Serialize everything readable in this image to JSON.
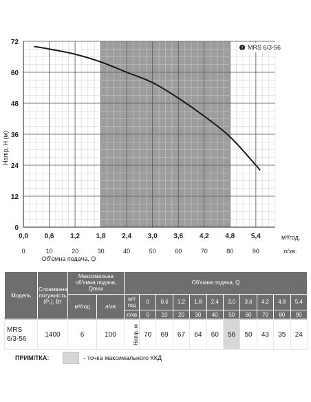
{
  "chart_data": {
    "type": "line",
    "legend": {
      "icon": "info-icon",
      "text": "MRS 6/3-56",
      "position": "top-right"
    },
    "ylabel": "Напір, Н (м)",
    "xlabel": "Об'ємна подача, Q",
    "ylim": [
      0,
      72
    ],
    "y_ticks": [
      0,
      12,
      24,
      36,
      48,
      60,
      72
    ],
    "xlim": [
      0,
      5.85
    ],
    "x_ticks_m3h": [
      "0,0",
      "0,6",
      "1,2",
      "1,8",
      "2,4",
      "3,0",
      "3,6",
      "4,2",
      "4,8",
      "5,4"
    ],
    "x_ticks_lmin": [
      "0",
      "10",
      "20",
      "30",
      "40",
      "50",
      "60",
      "70",
      "80",
      "90"
    ],
    "x_unit_m3h": "м³/год.",
    "x_unit_lmin": "л/хв.",
    "grid": true,
    "shaded_region_x": [
      1.8,
      4.8
    ],
    "series": [
      {
        "x": [
          0.25,
          0.6,
          1.2,
          1.8,
          2.4,
          3.0,
          3.6,
          4.2,
          4.8,
          5.4,
          5.5
        ],
        "y": [
          70,
          69,
          67,
          64,
          60,
          56,
          50,
          43,
          35,
          24,
          22
        ]
      }
    ]
  },
  "table": {
    "headers": {
      "model": "Модель",
      "power": "Споживана потужність (P₁), Вт",
      "qmax": "Максимальна об'ємна подача, Qmax",
      "qmax_m3h": "м³/год",
      "qmax_lmin": "л/хв",
      "flow": "Об'ємна подача, Q",
      "row_m3h": "м³/год",
      "row_lmin": "л/хв",
      "head_label": "Напір, м"
    },
    "q_m3h": [
      "0",
      "0,6",
      "1,2",
      "1,8",
      "2,4",
      "3,0",
      "3,6",
      "4,2",
      "4,8",
      "5,4"
    ],
    "q_lmin": [
      "0",
      "10",
      "20",
      "30",
      "40",
      "50",
      "60",
      "70",
      "80",
      "90"
    ],
    "row": {
      "model_line1": "MRS",
      "model_line2": "6/3-56",
      "power": "1400",
      "qmax_m3h": "6",
      "qmax_lmin": "100",
      "heads": [
        "70",
        "69",
        "67",
        "64",
        "60",
        "56",
        "50",
        "43",
        "35",
        "24"
      ]
    },
    "highlight_index": 5
  },
  "note": {
    "label": "ПРИМІТКА:",
    "text": "- точка максимального ККД"
  }
}
